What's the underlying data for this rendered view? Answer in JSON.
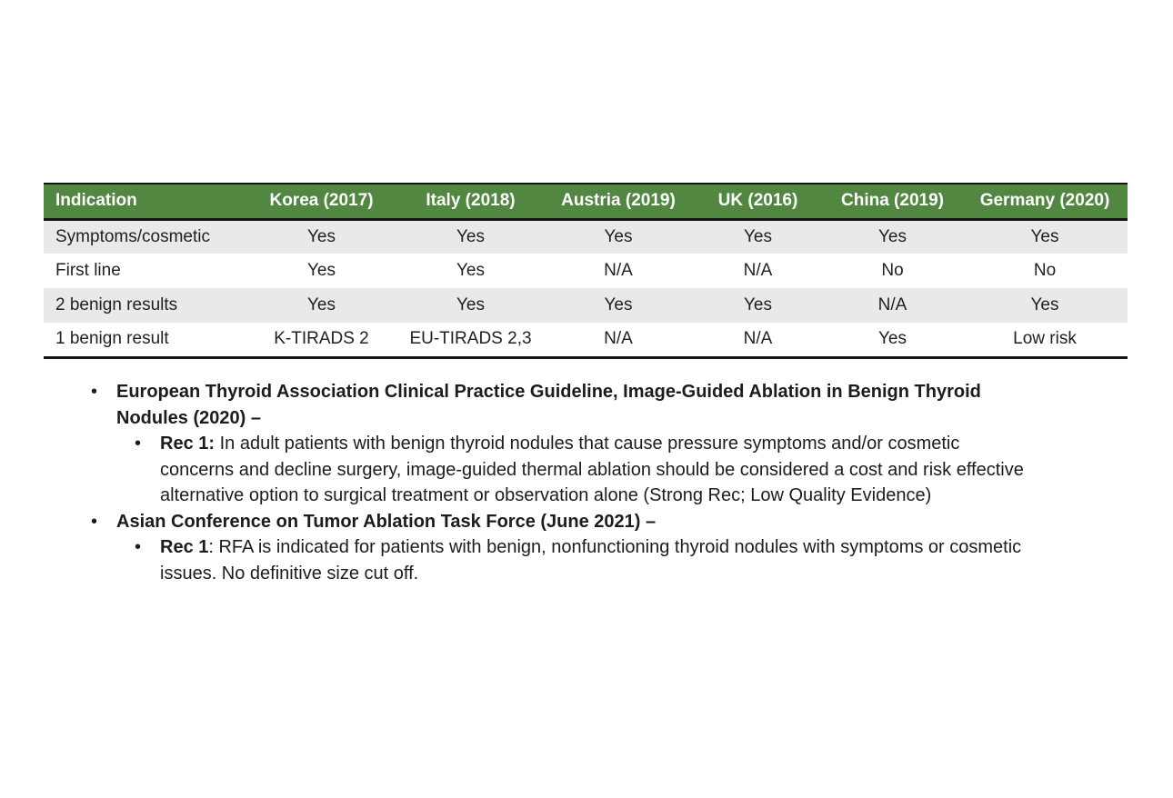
{
  "table": {
    "header": [
      "Indication",
      "Korea (2017)",
      "Italy (2018)",
      "Austria (2019)",
      "UK (2016)",
      "China (2019)",
      "Germany (2020)"
    ],
    "rows": [
      [
        "Symptoms/cosmetic",
        "Yes",
        "Yes",
        "Yes",
        "Yes",
        "Yes",
        "Yes"
      ],
      [
        "First line",
        "Yes",
        "Yes",
        "N/A",
        "N/A",
        "No",
        "No"
      ],
      [
        "2 benign results",
        "Yes",
        "Yes",
        "Yes",
        "Yes",
        "N/A",
        "Yes"
      ],
      [
        "1 benign result",
        "K-TIRADS 2",
        "EU-TIRADS 2,3",
        "N/A",
        "N/A",
        "Yes",
        "Low risk"
      ]
    ]
  },
  "notes": [
    {
      "lead": "European Thyroid Association Clinical Practice Guideline, Image-Guided Ablation in Benign Thyroid Nodules (2020) –",
      "rest": ""
    },
    {
      "lead": "Rec 1:",
      "rest": " In adult patients with benign thyroid nodules that cause pressure symptoms and/or cosmetic concerns and decline surgery, image-guided thermal ablation should be considered a cost and risk effective alternative option to surgical treatment or observation alone (Strong Rec; Low Quality Evidence)"
    },
    {
      "lead": "Asian Conference on Tumor Ablation Task Force (June 2021) –",
      "rest": ""
    },
    {
      "lead": "Rec 1",
      "rest": ": RFA is indicated for patients with benign, nonfunctioning thyroid nodules with symptoms or cosmetic issues. No definitive size cut off."
    }
  ],
  "colors": {
    "header_bg": "#518741",
    "header_text": "#ffffff",
    "row_alt_bg": "#e9e9e9",
    "border": "#141414"
  }
}
